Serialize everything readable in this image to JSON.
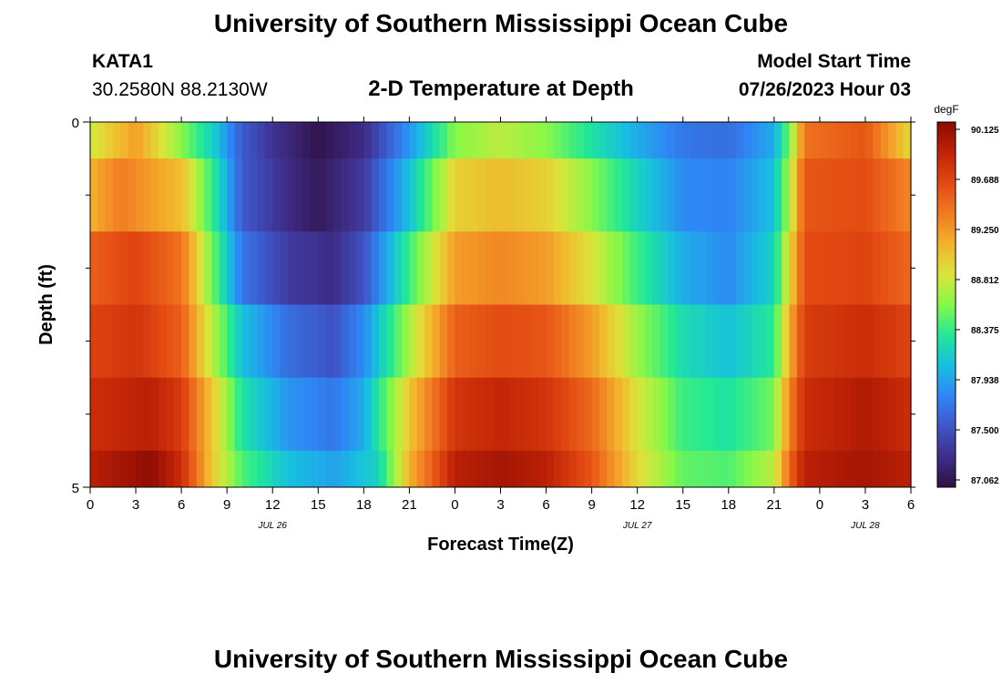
{
  "page_title": "University of Southern Mississippi Ocean Cube",
  "footer_title": "University of Southern Mississippi Ocean Cube",
  "station": {
    "id": "KATA1",
    "location": "30.2580N  88.2130W"
  },
  "model": {
    "label": "Model Start Time",
    "time": "07/26/2023 Hour 03"
  },
  "chart_data": {
    "type": "heatmap",
    "title": "2-D Temperature at Depth",
    "xlabel": "Forecast Time(Z)",
    "ylabel": "Depth (ft)",
    "x_hours": [
      0,
      3,
      6,
      9,
      12,
      15,
      18,
      21,
      24,
      27,
      30,
      33,
      36,
      39,
      42,
      45,
      48,
      51,
      54
    ],
    "x_tick_labels": [
      "0",
      "3",
      "6",
      "9",
      "12",
      "15",
      "18",
      "21",
      "0",
      "3",
      "6",
      "9",
      "12",
      "15",
      "18",
      "21",
      "0",
      "3",
      "6"
    ],
    "date_labels": [
      {
        "label": "JUL 26",
        "hour": 12
      },
      {
        "label": "JUL 27",
        "hour": 36
      },
      {
        "label": "JUL 28",
        "hour": 51
      }
    ],
    "ylim": [
      0,
      5
    ],
    "y_tick_labels": [
      "0",
      "5"
    ],
    "depth_bins_ft": [
      0,
      0.5,
      1.5,
      2.5,
      3.5,
      4.5,
      5
    ],
    "depth_layers": [
      {
        "depth_ft": "0-0.5",
        "keys": [
          [
            0,
            88.8
          ],
          [
            3,
            89.2
          ],
          [
            6,
            88.6
          ],
          [
            8,
            88.2
          ],
          [
            10,
            87.6
          ],
          [
            12,
            87.35
          ],
          [
            15,
            87.1
          ],
          [
            18,
            87.3
          ],
          [
            21,
            87.9
          ],
          [
            24,
            88.6
          ],
          [
            27,
            88.75
          ],
          [
            30,
            88.6
          ],
          [
            33,
            88.3
          ],
          [
            36,
            88.0
          ],
          [
            39,
            87.75
          ],
          [
            42,
            87.7
          ],
          [
            45,
            88.0
          ],
          [
            46,
            88.55
          ],
          [
            47,
            89.4
          ],
          [
            51,
            89.55
          ],
          [
            54,
            88.9
          ]
        ]
      },
      {
        "depth_ft": "0.5-1.5",
        "keys": [
          [
            0,
            89.1
          ],
          [
            2,
            89.35
          ],
          [
            6,
            89.05
          ],
          [
            8,
            88.4
          ],
          [
            10,
            87.6
          ],
          [
            13,
            87.3
          ],
          [
            15,
            87.15
          ],
          [
            18,
            87.4
          ],
          [
            21,
            88.1
          ],
          [
            24,
            88.95
          ],
          [
            27,
            89.05
          ],
          [
            30,
            88.95
          ],
          [
            33,
            88.6
          ],
          [
            36,
            88.2
          ],
          [
            39,
            87.85
          ],
          [
            42,
            87.8
          ],
          [
            45,
            88.1
          ],
          [
            46,
            88.7
          ],
          [
            47,
            89.55
          ],
          [
            51,
            89.6
          ],
          [
            54,
            89.3
          ]
        ]
      },
      {
        "depth_ft": "1.5-2.5",
        "keys": [
          [
            0,
            89.5
          ],
          [
            3,
            89.65
          ],
          [
            6,
            89.4
          ],
          [
            8,
            88.55
          ],
          [
            10,
            87.75
          ],
          [
            13,
            87.4
          ],
          [
            16,
            87.3
          ],
          [
            18,
            87.55
          ],
          [
            21,
            88.4
          ],
          [
            24,
            89.2
          ],
          [
            27,
            89.3
          ],
          [
            30,
            89.2
          ],
          [
            33,
            88.85
          ],
          [
            36,
            88.4
          ],
          [
            39,
            88.0
          ],
          [
            42,
            87.85
          ],
          [
            45,
            88.2
          ],
          [
            46,
            88.9
          ],
          [
            47,
            89.6
          ],
          [
            51,
            89.65
          ],
          [
            54,
            89.45
          ]
        ]
      },
      {
        "depth_ft": "2.5-3.5",
        "keys": [
          [
            0,
            89.65
          ],
          [
            3,
            89.75
          ],
          [
            6,
            89.5
          ],
          [
            8,
            88.75
          ],
          [
            10,
            88.1
          ],
          [
            13,
            87.7
          ],
          [
            16,
            87.55
          ],
          [
            18,
            87.85
          ],
          [
            21,
            88.7
          ],
          [
            24,
            89.5
          ],
          [
            27,
            89.6
          ],
          [
            30,
            89.55
          ],
          [
            33,
            89.2
          ],
          [
            36,
            88.65
          ],
          [
            39,
            88.25
          ],
          [
            42,
            88.1
          ],
          [
            45,
            88.35
          ],
          [
            46,
            89.1
          ],
          [
            47,
            89.7
          ],
          [
            51,
            89.8
          ],
          [
            54,
            89.65
          ]
        ]
      },
      {
        "depth_ft": "3.5-4.5",
        "keys": [
          [
            0,
            89.8
          ],
          [
            4,
            89.9
          ],
          [
            6,
            89.7
          ],
          [
            8,
            89.0
          ],
          [
            10,
            88.3
          ],
          [
            13,
            87.9
          ],
          [
            16,
            87.75
          ],
          [
            18,
            88.0
          ],
          [
            21,
            89.0
          ],
          [
            24,
            89.75
          ],
          [
            27,
            89.85
          ],
          [
            30,
            89.75
          ],
          [
            33,
            89.45
          ],
          [
            36,
            88.85
          ],
          [
            39,
            88.4
          ],
          [
            42,
            88.3
          ],
          [
            45,
            88.55
          ],
          [
            46,
            89.3
          ],
          [
            47,
            89.8
          ],
          [
            51,
            89.95
          ],
          [
            54,
            89.8
          ]
        ]
      },
      {
        "depth_ft": "4.5-5",
        "keys": [
          [
            0,
            89.9
          ],
          [
            4,
            90.1
          ],
          [
            6,
            89.8
          ],
          [
            8,
            89.0
          ],
          [
            10,
            88.45
          ],
          [
            13,
            88.1
          ],
          [
            16,
            87.95
          ],
          [
            19,
            88.2
          ],
          [
            21,
            89.1
          ],
          [
            24,
            89.9
          ],
          [
            27,
            90.0
          ],
          [
            30,
            89.9
          ],
          [
            33,
            89.55
          ],
          [
            36,
            88.9
          ],
          [
            39,
            88.5
          ],
          [
            42,
            88.45
          ],
          [
            45,
            88.75
          ],
          [
            46,
            89.45
          ],
          [
            47,
            89.9
          ],
          [
            51,
            90.0
          ],
          [
            54,
            89.9
          ]
        ]
      }
    ],
    "colorbar": {
      "unit": "degF",
      "min": 87.062,
      "max": 90.125,
      "tick_labels": [
        "90.125",
        "89.688",
        "89.250",
        "88.812",
        "88.375",
        "87.938",
        "87.500",
        "87.062"
      ],
      "colors": [
        "#2f1041",
        "#3f2e8a",
        "#3e56c8",
        "#2f86f5",
        "#17bfe0",
        "#22e896",
        "#86f848",
        "#dce43a",
        "#f3b22c",
        "#f17a21",
        "#e24912",
        "#c02306",
        "#8a0a03"
      ]
    }
  }
}
